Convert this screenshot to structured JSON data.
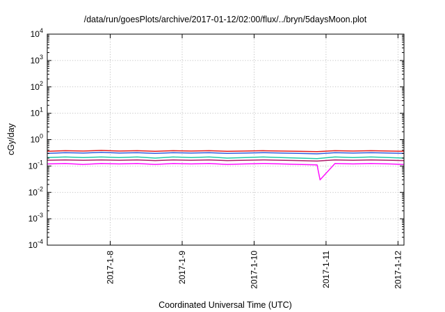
{
  "chart_data": {
    "type": "line",
    "title": "/data/run/goesPlots/archive/2017-01-12/02:00/flux/../bryn/5daysMoon.plot",
    "xlabel": "Coordinated Universal Time (UTC)",
    "ylabel": "cGy/day",
    "yscale": "log",
    "ylim": [
      0.0001,
      10000
    ],
    "xlim": [
      "2017-01-07 03:00",
      "2017-01-12 02:00"
    ],
    "grid": true,
    "legend": "none",
    "x_ticks": [
      {
        "value": "2017-01-08 00:00",
        "label": "2017-1-8"
      },
      {
        "value": "2017-01-09 00:00",
        "label": "2017-1-9"
      },
      {
        "value": "2017-01-10 00:00",
        "label": "2017-1-10"
      },
      {
        "value": "2017-01-11 00:00",
        "label": "2017-1-11"
      },
      {
        "value": "2017-01-12 00:00",
        "label": "2017-1-12"
      }
    ],
    "y_ticks": [
      {
        "value": 0.0001,
        "base": "10",
        "exp": "-4"
      },
      {
        "value": 0.001,
        "base": "10",
        "exp": "-3"
      },
      {
        "value": 0.01,
        "base": "10",
        "exp": "-2"
      },
      {
        "value": 0.1,
        "base": "10",
        "exp": "-1"
      },
      {
        "value": 1,
        "base": "10",
        "exp": "0"
      },
      {
        "value": 10,
        "base": "10",
        "exp": "1"
      },
      {
        "value": 100,
        "base": "10",
        "exp": "2"
      },
      {
        "value": 1000,
        "base": "10",
        "exp": "3"
      },
      {
        "value": 10000,
        "base": "10",
        "exp": "4"
      }
    ],
    "series": [
      {
        "color": "#e41a1c",
        "x": [
          "2017-01-07 03:00",
          "2017-01-07 09:00",
          "2017-01-07 15:00",
          "2017-01-07 21:00",
          "2017-01-08 03:00",
          "2017-01-08 09:00",
          "2017-01-08 15:00",
          "2017-01-08 21:00",
          "2017-01-09 03:00",
          "2017-01-09 09:00",
          "2017-01-09 15:00",
          "2017-01-09 21:00",
          "2017-01-10 03:00",
          "2017-01-10 09:00",
          "2017-01-10 15:00",
          "2017-01-10 21:00",
          "2017-01-11 03:00",
          "2017-01-11 09:00",
          "2017-01-11 15:00",
          "2017-01-11 21:00",
          "2017-01-12 02:00"
        ],
        "values": [
          0.36,
          0.38,
          0.37,
          0.39,
          0.37,
          0.38,
          0.36,
          0.38,
          0.37,
          0.38,
          0.36,
          0.37,
          0.38,
          0.37,
          0.36,
          0.35,
          0.38,
          0.37,
          0.38,
          0.37,
          0.36
        ]
      },
      {
        "color": "#3060e0",
        "x": [
          "2017-01-07 03:00",
          "2017-01-07 09:00",
          "2017-01-07 15:00",
          "2017-01-07 21:00",
          "2017-01-08 03:00",
          "2017-01-08 09:00",
          "2017-01-08 15:00",
          "2017-01-08 21:00",
          "2017-01-09 03:00",
          "2017-01-09 09:00",
          "2017-01-09 15:00",
          "2017-01-09 21:00",
          "2017-01-10 03:00",
          "2017-01-10 09:00",
          "2017-01-10 15:00",
          "2017-01-10 21:00",
          "2017-01-11 03:00",
          "2017-01-11 09:00",
          "2017-01-11 15:00",
          "2017-01-11 21:00",
          "2017-01-12 02:00"
        ],
        "values": [
          0.3,
          0.32,
          0.31,
          0.33,
          0.31,
          0.32,
          0.3,
          0.32,
          0.31,
          0.32,
          0.3,
          0.31,
          0.32,
          0.31,
          0.3,
          0.29,
          0.32,
          0.31,
          0.32,
          0.31,
          0.3
        ]
      },
      {
        "color": "#20c8a8",
        "x": [
          "2017-01-07 03:00",
          "2017-01-07 09:00",
          "2017-01-07 15:00",
          "2017-01-07 21:00",
          "2017-01-08 03:00",
          "2017-01-08 09:00",
          "2017-01-08 15:00",
          "2017-01-08 21:00",
          "2017-01-09 03:00",
          "2017-01-09 09:00",
          "2017-01-09 15:00",
          "2017-01-09 21:00",
          "2017-01-10 03:00",
          "2017-01-10 09:00",
          "2017-01-10 15:00",
          "2017-01-10 21:00",
          "2017-01-11 03:00",
          "2017-01-11 09:00",
          "2017-01-11 15:00",
          "2017-01-11 21:00",
          "2017-01-12 02:00"
        ],
        "values": [
          0.21,
          0.22,
          0.21,
          0.22,
          0.21,
          0.22,
          0.2,
          0.22,
          0.21,
          0.22,
          0.2,
          0.21,
          0.22,
          0.21,
          0.2,
          0.19,
          0.22,
          0.21,
          0.22,
          0.21,
          0.2
        ]
      },
      {
        "color": "#b0186a",
        "x": [
          "2017-01-07 03:00",
          "2017-01-07 09:00",
          "2017-01-07 15:00",
          "2017-01-07 21:00",
          "2017-01-08 03:00",
          "2017-01-08 09:00",
          "2017-01-08 15:00",
          "2017-01-08 21:00",
          "2017-01-09 03:00",
          "2017-01-09 09:00",
          "2017-01-09 15:00",
          "2017-01-09 21:00",
          "2017-01-10 03:00",
          "2017-01-10 09:00",
          "2017-01-10 15:00",
          "2017-01-10 21:00",
          "2017-01-11 03:00",
          "2017-01-11 09:00",
          "2017-01-11 15:00",
          "2017-01-11 21:00",
          "2017-01-12 02:00"
        ],
        "values": [
          0.165,
          0.17,
          0.165,
          0.17,
          0.165,
          0.17,
          0.16,
          0.17,
          0.165,
          0.17,
          0.16,
          0.165,
          0.17,
          0.165,
          0.16,
          0.155,
          0.17,
          0.165,
          0.17,
          0.165,
          0.16
        ]
      },
      {
        "color": "#ff10ff",
        "x": [
          "2017-01-07 03:00",
          "2017-01-07 09:00",
          "2017-01-07 15:00",
          "2017-01-07 21:00",
          "2017-01-08 03:00",
          "2017-01-08 09:00",
          "2017-01-08 15:00",
          "2017-01-08 21:00",
          "2017-01-09 03:00",
          "2017-01-09 09:00",
          "2017-01-09 15:00",
          "2017-01-09 21:00",
          "2017-01-10 03:00",
          "2017-01-10 09:00",
          "2017-01-10 15:00",
          "2017-01-10 21:00",
          "2017-01-10 22:00",
          "2017-01-11 03:00",
          "2017-01-11 09:00",
          "2017-01-11 15:00",
          "2017-01-11 21:00",
          "2017-01-12 02:00"
        ],
        "values": [
          0.12,
          0.125,
          0.115,
          0.125,
          0.12,
          0.125,
          0.115,
          0.125,
          0.12,
          0.125,
          0.115,
          0.12,
          0.125,
          0.12,
          0.115,
          0.11,
          0.03,
          0.125,
          0.12,
          0.125,
          0.12,
          0.115
        ]
      }
    ]
  }
}
